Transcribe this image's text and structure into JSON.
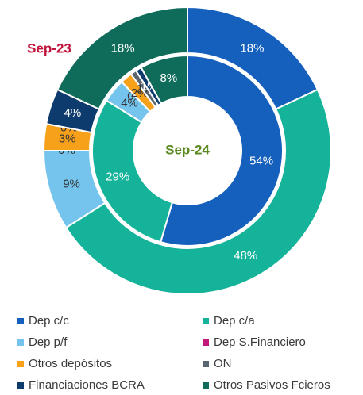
{
  "chart_data": {
    "type": "donut",
    "categories": [
      "Dep c/c",
      "Dep c/a",
      "Dep p/f",
      "Dep S.Financiero",
      "Otros depósitos",
      "ON",
      "Financiaciones BCRA",
      "Otros Pasivos Fcieros"
    ],
    "colors": [
      "#1560bd",
      "#14b39a",
      "#74c4ee",
      "#c2187a",
      "#f7a11a",
      "#5b6670",
      "#0d3b6e",
      "#0f6b5a"
    ],
    "series": [
      {
        "name": "Sep-24",
        "values": [
          54,
          29,
          4,
          0,
          2,
          1,
          1,
          8
        ],
        "value_labels": [
          "54%",
          "29%",
          "4%",
          "0%",
          "2%",
          "1%",
          "1%",
          "8%"
        ]
      },
      {
        "name": "Sep-23",
        "values": [
          18,
          48,
          9,
          0,
          3,
          0,
          4,
          18
        ],
        "value_labels": [
          "18%",
          "48%",
          "9%",
          "0%",
          "3%",
          "0%",
          "4%",
          "18%"
        ]
      }
    ]
  }
}
